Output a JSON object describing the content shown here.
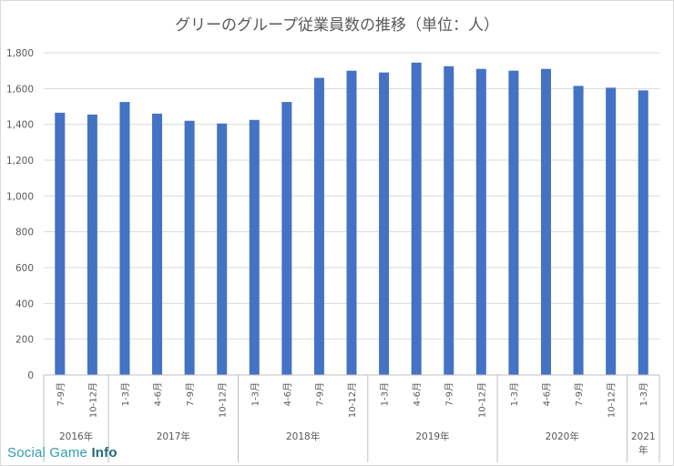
{
  "chart_data": {
    "type": "bar",
    "title": "グリーのグループ従業員数の推移（単位：人）",
    "ylim": [
      0,
      1800
    ],
    "yticks": [
      "0",
      "200",
      "400",
      "600",
      "800",
      "1,000",
      "1,200",
      "1,400",
      "1,600",
      "1,800"
    ],
    "grid": true,
    "color": "#4472c4",
    "categories": [
      "7-9月",
      "10-12月",
      "1-3月",
      "4-6月",
      "7-9月",
      "10-12月",
      "1-3月",
      "4-6月",
      "7-9月",
      "10-12月",
      "1-3月",
      "4-6月",
      "7-9月",
      "10-12月",
      "1-3月",
      "4-6月",
      "7-9月",
      "10-12月",
      "1-3月"
    ],
    "values": [
      1465,
      1455,
      1525,
      1460,
      1420,
      1405,
      1425,
      1525,
      1660,
      1700,
      1690,
      1745,
      1725,
      1710,
      1700,
      1710,
      1615,
      1605,
      1590
    ],
    "years": [
      {
        "label": "2016年",
        "count": 2
      },
      {
        "label": "2017年",
        "count": 4
      },
      {
        "label": "2018年",
        "count": 4
      },
      {
        "label": "2019年",
        "count": 4
      },
      {
        "label": "2020年",
        "count": 4
      },
      {
        "label": "2021年",
        "count": 1
      }
    ]
  },
  "watermark": {
    "part1": "Social Game ",
    "part2": "Info"
  }
}
